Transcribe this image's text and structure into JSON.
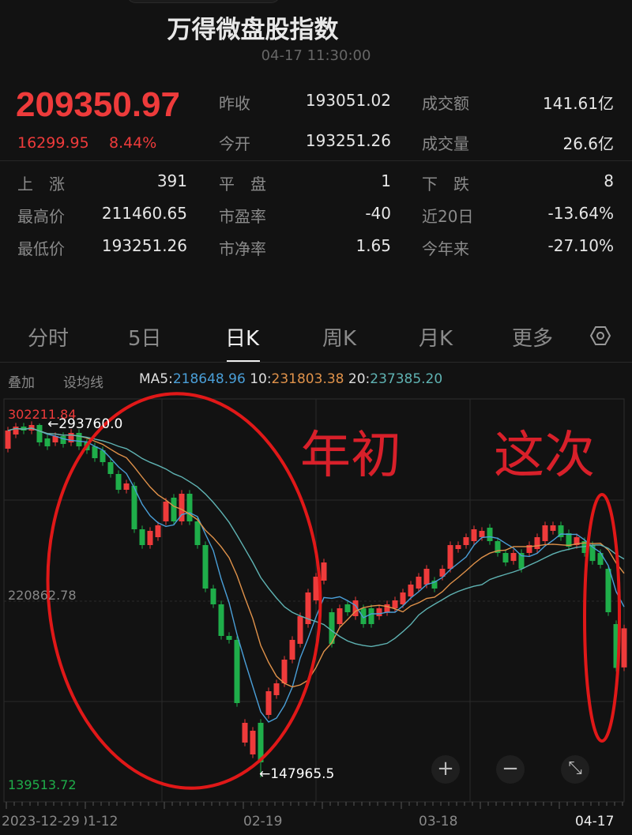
{
  "header": {
    "title": "万得微盘股指数",
    "timestamp": "04-17 11:30:00"
  },
  "quote": {
    "price": "209350.97",
    "change": "16299.95",
    "change_pct": "8.44%",
    "stats": [
      [
        {
          "label": "昨收",
          "value": "193051.02"
        },
        {
          "label": "成交额",
          "value": "141.61亿"
        }
      ],
      [
        {
          "label": "今开",
          "value": "193251.26"
        },
        {
          "label": "成交量",
          "value": "26.6亿"
        }
      ]
    ],
    "grid": [
      [
        {
          "label": "上　涨",
          "value": "391"
        },
        {
          "label": "平　盘",
          "value": "1"
        },
        {
          "label": "下　跌",
          "value": "8"
        }
      ],
      [
        {
          "label": "最高价",
          "value": "211460.65"
        },
        {
          "label": "市盈率",
          "value": "-40"
        },
        {
          "label": "近20日",
          "value": "-13.64%"
        }
      ],
      [
        {
          "label": "最低价",
          "value": "193251.26"
        },
        {
          "label": "市净率",
          "value": "1.65"
        },
        {
          "label": "今年来",
          "value": "-27.10%"
        }
      ]
    ]
  },
  "tabs": [
    {
      "label": "分时"
    },
    {
      "label": "5日"
    },
    {
      "label": "日K",
      "selected": true
    },
    {
      "label": "周K"
    },
    {
      "label": "月K"
    },
    {
      "label": "更多"
    }
  ],
  "settings_icon": "hexagon-gear-icon",
  "indicators": {
    "overlay": "叠加",
    "ma_settings": "设均线",
    "ma5_label": "MA5:",
    "ma5": "218648.96",
    "ma10_label": "10:",
    "ma10": "231803.38",
    "ma20_label": "20:",
    "ma20": "237385.20"
  },
  "colors": {
    "up": "#ee3b3b",
    "down": "#1fae4a",
    "ma5": "#4a9fd8",
    "ma10": "#e0924a",
    "ma20": "#5fb3b3",
    "annotation": "#e01818"
  },
  "chart_data": {
    "type": "candlestick",
    "y_max_label": "302211.84",
    "y_mid_label": "220862.78",
    "y_min_label": "139513.72",
    "ylim": [
      139513.72,
      302211.84
    ],
    "high_marker": "←293760.0",
    "low_marker": "←147965.5",
    "x_labels": [
      "2023-12-29",
      "01-12",
      "02-19",
      "03-18",
      "04-17"
    ],
    "candles": [
      [
        283339,
        290823
      ],
      [
        289196,
        292450
      ],
      [
        292450,
        290823
      ],
      [
        290823,
        293101
      ],
      [
        293101,
        285942
      ],
      [
        287569,
        284315
      ],
      [
        285942,
        288545
      ],
      [
        288545,
        285291
      ],
      [
        285942,
        289847
      ],
      [
        289847,
        284315
      ],
      [
        285942,
        282688
      ],
      [
        284315,
        279434
      ],
      [
        282688,
        277807
      ],
      [
        277807,
        272926
      ],
      [
        272926,
        266418
      ],
      [
        266418,
        269021
      ],
      [
        268045,
        250148
      ],
      [
        250148,
        243640
      ],
      [
        243640,
        249497
      ],
      [
        246894,
        251775
      ],
      [
        253402,
        261537
      ],
      [
        263164,
        253402
      ],
      [
        253402,
        264791
      ],
      [
        264791,
        253402
      ],
      [
        253402,
        243640
      ],
      [
        243640,
        225743
      ],
      [
        225743,
        219235
      ],
      [
        219235,
        206219
      ],
      [
        206219,
        204592
      ],
      [
        204592,
        178560
      ],
      [
        162290,
        170425
      ],
      [
        157409,
        167171
      ],
      [
        170425,
        154155
      ],
      [
        173679,
        183441
      ],
      [
        181814,
        186695
      ],
      [
        186695,
        196457
      ],
      [
        196457,
        204592
      ],
      [
        202965,
        214354
      ],
      [
        211100,
        224116
      ],
      [
        220862,
        230624
      ],
      [
        228997,
        236481
      ],
      [
        215981,
        202965
      ],
      [
        211100,
        217608
      ],
      [
        219235,
        215981
      ],
      [
        214354,
        220862
      ],
      [
        217608,
        211100
      ],
      [
        217608,
        211100
      ],
      [
        214354,
        217608
      ],
      [
        215981,
        219235
      ],
      [
        217608,
        220862
      ],
      [
        219235,
        224116
      ],
      [
        222489,
        227370
      ],
      [
        225743,
        230624
      ],
      [
        227370,
        233878
      ],
      [
        228997,
        225743
      ],
      [
        230624,
        233878
      ],
      [
        233878,
        243640
      ],
      [
        242013,
        243640
      ],
      [
        243640,
        246894
      ],
      [
        245267,
        250148
      ],
      [
        246894,
        249497
      ],
      [
        250799,
        245267
      ],
      [
        245267,
        240386
      ],
      [
        240386,
        236481
      ],
      [
        237106,
        240386
      ],
      [
        240386,
        233878
      ],
      [
        240386,
        243640
      ],
      [
        242013,
        246894
      ],
      [
        245267,
        251775
      ],
      [
        249497,
        251775
      ],
      [
        251775,
        246894
      ],
      [
        248521,
        242989
      ],
      [
        243640,
        246894
      ],
      [
        245267,
        240386
      ],
      [
        243640,
        237106
      ],
      [
        240386,
        235505
      ],
      [
        233878,
        215981
      ],
      [
        211100,
        193051
      ],
      [
        193251,
        209351
      ]
    ],
    "dates_partial": "2023-12-29 to 04-17"
  },
  "annotations": {
    "left": "年初",
    "right": "这次"
  },
  "controls": {
    "zoom_in": "+",
    "zoom_out": "−",
    "fullscreen": "⤡"
  }
}
